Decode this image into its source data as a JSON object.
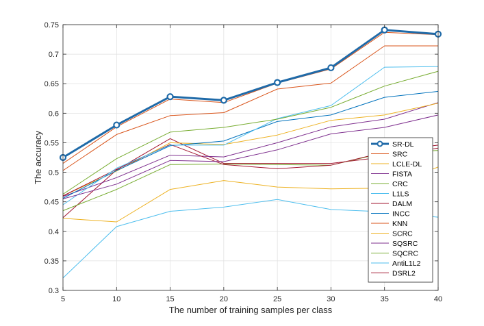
{
  "chart_data": {
    "type": "line",
    "title": "",
    "xlabel": "The number of training samples per class",
    "ylabel": "The accuracy",
    "x": [
      5,
      10,
      15,
      20,
      25,
      30,
      35,
      40
    ],
    "xlim": [
      5,
      40
    ],
    "ylim": [
      0.3,
      0.75
    ],
    "xticks": [
      "5",
      "10",
      "15",
      "20",
      "25",
      "30",
      "35",
      "40"
    ],
    "yticks": [
      "0.3",
      "0.35",
      "0.4",
      "0.45",
      "0.5",
      "0.55",
      "0.6",
      "0.65",
      "0.7",
      "0.75"
    ],
    "grid": true,
    "legend_position": "right",
    "series": [
      {
        "name": "SR-DL",
        "color": "#1f6aa8",
        "bold": true,
        "marker": "circle",
        "values": [
          0.525,
          0.58,
          0.628,
          0.622,
          0.652,
          0.677,
          0.741,
          0.734
        ]
      },
      {
        "name": "SRC",
        "color": "#d95319",
        "values": [
          0.515,
          0.577,
          0.624,
          0.618,
          0.651,
          0.675,
          0.737,
          0.733
        ]
      },
      {
        "name": "LCLE-DL",
        "color": "#edb120",
        "values": [
          0.422,
          0.416,
          0.471,
          0.486,
          0.475,
          0.472,
          0.473,
          0.509
        ]
      },
      {
        "name": "FISTA",
        "color": "#7e2f8e",
        "values": [
          0.455,
          0.48,
          0.52,
          0.518,
          0.538,
          0.565,
          0.576,
          0.597
        ]
      },
      {
        "name": "CRC",
        "color": "#77ac30",
        "values": [
          0.463,
          0.523,
          0.568,
          0.576,
          0.59,
          0.61,
          0.646,
          0.671
        ]
      },
      {
        "name": "L1LS",
        "color": "#4dbeee",
        "values": [
          0.445,
          0.507,
          0.546,
          0.546,
          0.591,
          0.613,
          0.678,
          0.679
        ]
      },
      {
        "name": "DALM",
        "color": "#a2142f",
        "values": [
          0.46,
          0.505,
          0.547,
          0.513,
          0.506,
          0.512,
          0.534,
          0.546
        ]
      },
      {
        "name": "INCC",
        "color": "#0072bd",
        "values": [
          0.456,
          0.503,
          0.545,
          0.553,
          0.586,
          0.597,
          0.627,
          0.637
        ]
      },
      {
        "name": "KNN",
        "color": "#d95319",
        "values": [
          0.503,
          0.564,
          0.596,
          0.601,
          0.641,
          0.651,
          0.714,
          0.714
        ]
      },
      {
        "name": "SCRC",
        "color": "#edb120",
        "values": [
          0.46,
          0.502,
          0.55,
          0.547,
          0.563,
          0.588,
          0.597,
          0.617
        ]
      },
      {
        "name": "SQSRC",
        "color": "#7e2f8e",
        "values": [
          0.459,
          0.491,
          0.529,
          0.526,
          0.55,
          0.577,
          0.59,
          0.618
        ]
      },
      {
        "name": "SQCRC",
        "color": "#77ac30",
        "values": [
          0.435,
          0.471,
          0.513,
          0.514,
          0.513,
          0.512,
          0.533,
          0.537
        ]
      },
      {
        "name": "AntiL1L2",
        "color": "#4dbeee",
        "values": [
          0.321,
          0.408,
          0.434,
          0.441,
          0.454,
          0.437,
          0.433,
          0.424
        ]
      },
      {
        "name": "DSRL2",
        "color": "#a2142f",
        "values": [
          0.423,
          0.504,
          0.557,
          0.515,
          0.515,
          0.515,
          0.526,
          0.541
        ]
      }
    ]
  }
}
